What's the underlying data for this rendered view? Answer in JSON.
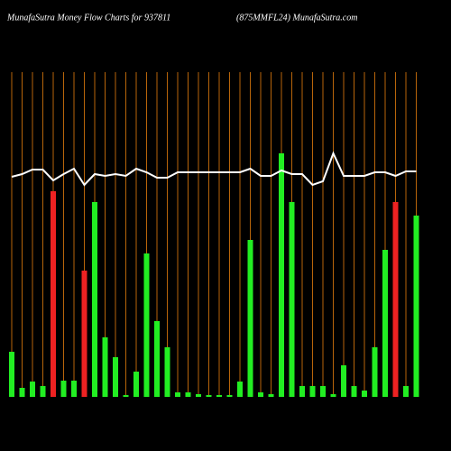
{
  "chart_data": {
    "type": "bar",
    "title": "MunafaSutra  Money Flow  Charts for 937811",
    "subtitle": "(875MMFL24) MunafaSutra.com",
    "categories": [
      null,
      null,
      null,
      null,
      null,
      null,
      null,
      null,
      null,
      null,
      null,
      null,
      null,
      null,
      null,
      null,
      null,
      null,
      null,
      null,
      null,
      null,
      null,
      null,
      null,
      null,
      null,
      null,
      null,
      null,
      null,
      null,
      null,
      null,
      null,
      null,
      null,
      null,
      null,
      null
    ],
    "ylim": [
      0,
      360
    ],
    "series": [
      {
        "values": [
          50,
          10,
          17,
          12,
          228,
          18,
          18,
          140,
          216,
          66,
          44,
          2,
          28,
          159,
          84,
          55,
          5,
          5,
          3,
          2,
          2,
          2,
          17,
          174,
          5,
          3,
          270,
          216,
          12,
          12,
          12,
          3,
          35,
          12,
          7,
          55,
          163,
          216,
          12,
          201
        ],
        "colors": [
          "#22ee22",
          "#22ee22",
          "#22ee22",
          "#22ee22",
          "#ee2222",
          "#22ee22",
          "#22ee22",
          "#ee2222",
          "#22ee22",
          "#22ee22",
          "#22ee22",
          "#22ee22",
          "#22ee22",
          "#22ee22",
          "#22ee22",
          "#22ee22",
          "#22ee22",
          "#22ee22",
          "#22ee22",
          "#22ee22",
          "#22ee22",
          "#22ee22",
          "#22ee22",
          "#22ee22",
          "#22ee22",
          "#22ee22",
          "#22ee22",
          "#22ee22",
          "#22ee22",
          "#22ee22",
          "#22ee22",
          "#22ee22",
          "#22ee22",
          "#22ee22",
          "#22ee22",
          "#22ee22",
          "#22ee22",
          "#ee2222",
          "#22ee22",
          "#22ee22"
        ]
      },
      {
        "type": "line",
        "color": "#ffffff",
        "values": [
          244,
          247,
          252,
          252,
          240,
          247,
          253,
          235,
          247,
          245,
          247,
          245,
          253,
          249,
          243,
          243,
          249,
          249,
          249,
          249,
          249,
          249,
          249,
          253,
          245,
          245,
          251,
          247,
          247,
          235,
          239,
          270,
          245,
          245,
          245,
          249,
          249,
          245,
          250,
          250
        ]
      }
    ],
    "gridline_color": "#b8650a"
  }
}
